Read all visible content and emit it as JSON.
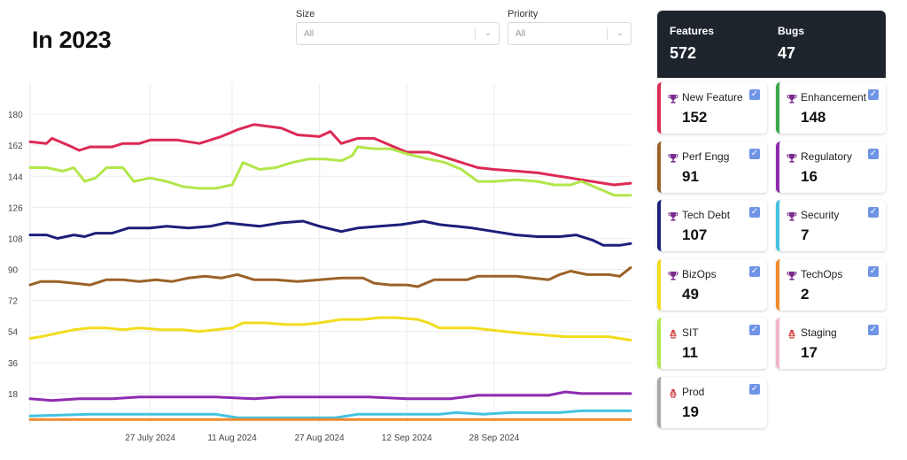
{
  "page_title": "In 2023",
  "filters": [
    {
      "label": "Size",
      "value": "All"
    },
    {
      "label": "Priority",
      "value": "All"
    }
  ],
  "summary": {
    "features_label": "Features",
    "features_value": "572",
    "bugs_label": "Bugs",
    "bugs_value": "47"
  },
  "cards": [
    {
      "name": "New Feature",
      "value": "152",
      "color": "#dc2a55",
      "icon": "trophy-icon"
    },
    {
      "name": "Enhancement",
      "value": "148",
      "color": "#3aa84a",
      "icon": "trophy-icon"
    },
    {
      "name": "Perf Engg",
      "value": "91",
      "color": "#9b6228",
      "icon": "trophy-icon"
    },
    {
      "name": "Regulatory",
      "value": "16",
      "color": "#8e2bb0",
      "icon": "trophy-icon"
    },
    {
      "name": "Tech Debt",
      "value": "107",
      "color": "#1b1f7a",
      "icon": "trophy-icon"
    },
    {
      "name": "Security",
      "value": "7",
      "color": "#43c3e0",
      "icon": "trophy-icon"
    },
    {
      "name": "BizOps",
      "value": "49",
      "color": "#f2dc1e",
      "icon": "trophy-icon"
    },
    {
      "name": "TechOps",
      "value": "2",
      "color": "#f08a2c",
      "icon": "trophy-icon"
    },
    {
      "name": "SIT",
      "value": "11",
      "color": "#b2e64a",
      "icon": "bug-icon"
    },
    {
      "name": "Staging",
      "value": "17",
      "color": "#f2b6c6",
      "icon": "bug-icon"
    },
    {
      "name": "Prod",
      "value": "19",
      "color": "#a8a8a8",
      "icon": "bug-icon"
    }
  ],
  "chart_data": {
    "type": "line",
    "ylim": [
      0,
      198
    ],
    "yticks": [
      18,
      36,
      54,
      72,
      90,
      108,
      126,
      144,
      162,
      180
    ],
    "xlim": [
      "2024-07-05",
      "2024-10-23"
    ],
    "xticks": [
      "27 July 2024",
      "11 Aug 2024",
      "27 Aug 2024",
      "12 Sep 2024",
      "28 Sep 2024"
    ],
    "xtick_dates": [
      "2024-07-27",
      "2024-08-11",
      "2024-08-27",
      "2024-09-12",
      "2024-09-28"
    ],
    "grid": true,
    "series": [
      {
        "color": "#dc2a55",
        "points": [
          [
            "2024-07-05",
            164
          ],
          [
            "2024-07-08",
            163
          ],
          [
            "2024-07-09",
            166
          ],
          [
            "2024-07-12",
            162
          ],
          [
            "2024-07-14",
            159
          ],
          [
            "2024-07-16",
            161
          ],
          [
            "2024-07-20",
            161
          ],
          [
            "2024-07-22",
            163
          ],
          [
            "2024-07-25",
            163
          ],
          [
            "2024-07-27",
            165
          ],
          [
            "2024-08-01",
            165
          ],
          [
            "2024-08-05",
            163
          ],
          [
            "2024-08-09",
            167
          ],
          [
            "2024-08-12",
            171
          ],
          [
            "2024-08-15",
            174
          ],
          [
            "2024-08-20",
            172
          ],
          [
            "2024-08-23",
            168
          ],
          [
            "2024-08-27",
            167
          ],
          [
            "2024-08-29",
            170
          ],
          [
            "2024-08-31",
            163
          ],
          [
            "2024-09-03",
            166
          ],
          [
            "2024-09-06",
            166
          ],
          [
            "2024-09-09",
            162
          ],
          [
            "2024-09-12",
            158
          ],
          [
            "2024-09-16",
            158
          ],
          [
            "2024-09-19",
            155
          ],
          [
            "2024-09-22",
            152
          ],
          [
            "2024-09-25",
            149
          ],
          [
            "2024-09-28",
            148
          ],
          [
            "2024-10-02",
            147
          ],
          [
            "2024-10-06",
            146
          ],
          [
            "2024-10-10",
            144
          ],
          [
            "2024-10-14",
            142
          ],
          [
            "2024-10-18",
            140
          ],
          [
            "2024-10-20",
            139
          ],
          [
            "2024-10-23",
            140
          ]
        ]
      },
      {
        "color": "#b2e64a",
        "points": [
          [
            "2024-07-05",
            149
          ],
          [
            "2024-07-08",
            149
          ],
          [
            "2024-07-11",
            147
          ],
          [
            "2024-07-13",
            149
          ],
          [
            "2024-07-15",
            141
          ],
          [
            "2024-07-17",
            143
          ],
          [
            "2024-07-19",
            149
          ],
          [
            "2024-07-22",
            149
          ],
          [
            "2024-07-24",
            141
          ],
          [
            "2024-07-27",
            143
          ],
          [
            "2024-07-30",
            141
          ],
          [
            "2024-08-02",
            138
          ],
          [
            "2024-08-05",
            137
          ],
          [
            "2024-08-08",
            137
          ],
          [
            "2024-08-11",
            139
          ],
          [
            "2024-08-13",
            152
          ],
          [
            "2024-08-16",
            148
          ],
          [
            "2024-08-19",
            149
          ],
          [
            "2024-08-22",
            152
          ],
          [
            "2024-08-25",
            154
          ],
          [
            "2024-08-28",
            154
          ],
          [
            "2024-08-31",
            153
          ],
          [
            "2024-09-02",
            156
          ],
          [
            "2024-09-03",
            161
          ],
          [
            "2024-09-06",
            160
          ],
          [
            "2024-09-09",
            160
          ],
          [
            "2024-09-12",
            157
          ],
          [
            "2024-09-16",
            154
          ],
          [
            "2024-09-19",
            152
          ],
          [
            "2024-09-22",
            148
          ],
          [
            "2024-09-25",
            141
          ],
          [
            "2024-09-28",
            141
          ],
          [
            "2024-10-02",
            142
          ],
          [
            "2024-10-06",
            141
          ],
          [
            "2024-10-09",
            139
          ],
          [
            "2024-10-12",
            139
          ],
          [
            "2024-10-14",
            141
          ],
          [
            "2024-10-17",
            137
          ],
          [
            "2024-10-20",
            133
          ],
          [
            "2024-10-23",
            133
          ]
        ]
      },
      {
        "color": "#1b1f7a",
        "points": [
          [
            "2024-07-05",
            110
          ],
          [
            "2024-07-08",
            110
          ],
          [
            "2024-07-10",
            108
          ],
          [
            "2024-07-13",
            110
          ],
          [
            "2024-07-15",
            109
          ],
          [
            "2024-07-17",
            111
          ],
          [
            "2024-07-20",
            111
          ],
          [
            "2024-07-23",
            114
          ],
          [
            "2024-07-27",
            114
          ],
          [
            "2024-07-30",
            115
          ],
          [
            "2024-08-03",
            114
          ],
          [
            "2024-08-07",
            115
          ],
          [
            "2024-08-10",
            117
          ],
          [
            "2024-08-13",
            116
          ],
          [
            "2024-08-16",
            115
          ],
          [
            "2024-08-20",
            117
          ],
          [
            "2024-08-24",
            118
          ],
          [
            "2024-08-27",
            115
          ],
          [
            "2024-08-31",
            112
          ],
          [
            "2024-09-03",
            114
          ],
          [
            "2024-09-07",
            115
          ],
          [
            "2024-09-11",
            116
          ],
          [
            "2024-09-15",
            118
          ],
          [
            "2024-09-18",
            116
          ],
          [
            "2024-09-21",
            115
          ],
          [
            "2024-09-24",
            114
          ],
          [
            "2024-09-28",
            112
          ],
          [
            "2024-10-02",
            110
          ],
          [
            "2024-10-06",
            109
          ],
          [
            "2024-10-10",
            109
          ],
          [
            "2024-10-13",
            110
          ],
          [
            "2024-10-16",
            107
          ],
          [
            "2024-10-18",
            104
          ],
          [
            "2024-10-21",
            104
          ],
          [
            "2024-10-23",
            105
          ]
        ]
      },
      {
        "color": "#9b6228",
        "points": [
          [
            "2024-07-05",
            81
          ],
          [
            "2024-07-07",
            83
          ],
          [
            "2024-07-10",
            83
          ],
          [
            "2024-07-13",
            82
          ],
          [
            "2024-07-16",
            81
          ],
          [
            "2024-07-19",
            84
          ],
          [
            "2024-07-22",
            84
          ],
          [
            "2024-07-25",
            83
          ],
          [
            "2024-07-28",
            84
          ],
          [
            "2024-07-31",
            83
          ],
          [
            "2024-08-03",
            85
          ],
          [
            "2024-08-06",
            86
          ],
          [
            "2024-08-09",
            85
          ],
          [
            "2024-08-12",
            87
          ],
          [
            "2024-08-15",
            84
          ],
          [
            "2024-08-19",
            84
          ],
          [
            "2024-08-23",
            83
          ],
          [
            "2024-08-27",
            84
          ],
          [
            "2024-08-31",
            85
          ],
          [
            "2024-09-04",
            85
          ],
          [
            "2024-09-06",
            82
          ],
          [
            "2024-09-09",
            81
          ],
          [
            "2024-09-12",
            81
          ],
          [
            "2024-09-14",
            80
          ],
          [
            "2024-09-17",
            84
          ],
          [
            "2024-09-20",
            84
          ],
          [
            "2024-09-23",
            84
          ],
          [
            "2024-09-25",
            86
          ],
          [
            "2024-09-28",
            86
          ],
          [
            "2024-10-02",
            86
          ],
          [
            "2024-10-05",
            85
          ],
          [
            "2024-10-08",
            84
          ],
          [
            "2024-10-10",
            87
          ],
          [
            "2024-10-12",
            89
          ],
          [
            "2024-10-15",
            87
          ],
          [
            "2024-10-19",
            87
          ],
          [
            "2024-10-21",
            86
          ],
          [
            "2024-10-23",
            91
          ]
        ]
      },
      {
        "color": "#f2dc1e",
        "points": [
          [
            "2024-07-05",
            50
          ],
          [
            "2024-07-07",
            51
          ],
          [
            "2024-07-10",
            53
          ],
          [
            "2024-07-13",
            55
          ],
          [
            "2024-07-16",
            56
          ],
          [
            "2024-07-19",
            56
          ],
          [
            "2024-07-22",
            55
          ],
          [
            "2024-07-25",
            56
          ],
          [
            "2024-07-29",
            55
          ],
          [
            "2024-08-02",
            55
          ],
          [
            "2024-08-05",
            54
          ],
          [
            "2024-08-08",
            55
          ],
          [
            "2024-08-11",
            56
          ],
          [
            "2024-08-13",
            59
          ],
          [
            "2024-08-17",
            59
          ],
          [
            "2024-08-21",
            58
          ],
          [
            "2024-08-24",
            58
          ],
          [
            "2024-08-27",
            59
          ],
          [
            "2024-08-31",
            61
          ],
          [
            "2024-09-04",
            61
          ],
          [
            "2024-09-07",
            62
          ],
          [
            "2024-09-10",
            62
          ],
          [
            "2024-09-14",
            61
          ],
          [
            "2024-09-16",
            59
          ],
          [
            "2024-09-18",
            56
          ],
          [
            "2024-09-21",
            56
          ],
          [
            "2024-09-24",
            56
          ],
          [
            "2024-09-27",
            55
          ],
          [
            "2024-09-30",
            54
          ],
          [
            "2024-10-03",
            53
          ],
          [
            "2024-10-07",
            52
          ],
          [
            "2024-10-11",
            51
          ],
          [
            "2024-10-15",
            51
          ],
          [
            "2024-10-19",
            51
          ],
          [
            "2024-10-23",
            49
          ]
        ]
      },
      {
        "color": "#8e2bb0",
        "points": [
          [
            "2024-07-05",
            15
          ],
          [
            "2024-07-09",
            14
          ],
          [
            "2024-07-14",
            15
          ],
          [
            "2024-07-20",
            15
          ],
          [
            "2024-07-25",
            16
          ],
          [
            "2024-08-01",
            16
          ],
          [
            "2024-08-08",
            16
          ],
          [
            "2024-08-15",
            15
          ],
          [
            "2024-08-20",
            16
          ],
          [
            "2024-08-27",
            16
          ],
          [
            "2024-09-05",
            16
          ],
          [
            "2024-09-12",
            15
          ],
          [
            "2024-09-20",
            15
          ],
          [
            "2024-09-25",
            17
          ],
          [
            "2024-10-02",
            17
          ],
          [
            "2024-10-08",
            17
          ],
          [
            "2024-10-11",
            19
          ],
          [
            "2024-10-14",
            18
          ],
          [
            "2024-10-23",
            18
          ]
        ]
      },
      {
        "color": "#43c3e0",
        "points": [
          [
            "2024-07-05",
            5
          ],
          [
            "2024-07-16",
            6
          ],
          [
            "2024-08-08",
            6
          ],
          [
            "2024-08-12",
            4
          ],
          [
            "2024-08-30",
            4
          ],
          [
            "2024-09-03",
            6
          ],
          [
            "2024-09-18",
            6
          ],
          [
            "2024-09-21",
            7
          ],
          [
            "2024-09-26",
            6
          ],
          [
            "2024-10-01",
            7
          ],
          [
            "2024-10-10",
            7
          ],
          [
            "2024-10-14",
            8
          ],
          [
            "2024-10-23",
            8
          ]
        ]
      },
      {
        "color": "#f08a2c",
        "points": [
          [
            "2024-07-05",
            3
          ],
          [
            "2024-10-23",
            3
          ]
        ]
      }
    ]
  }
}
